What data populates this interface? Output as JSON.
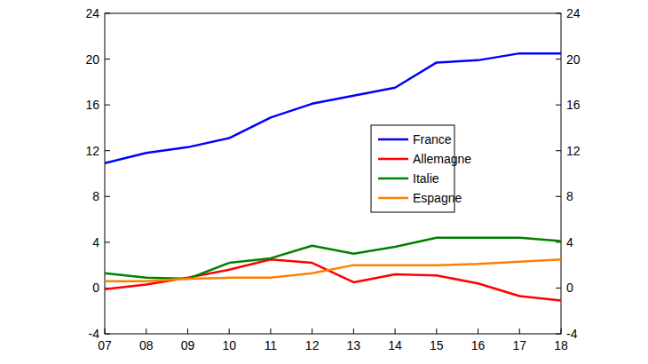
{
  "chart_data": {
    "type": "line",
    "categories": [
      "07",
      "08",
      "09",
      "10",
      "11",
      "12",
      "13",
      "14",
      "15",
      "16",
      "17",
      "18"
    ],
    "series": [
      {
        "name": "France",
        "color": "#0000ff",
        "values": [
          10.9,
          11.8,
          12.3,
          13.1,
          14.9,
          16.1,
          16.8,
          17.5,
          19.7,
          19.9,
          20.5,
          20.5
        ]
      },
      {
        "name": "Allemagne",
        "color": "#ff0000",
        "values": [
          -0.1,
          0.3,
          0.9,
          1.6,
          2.5,
          2.2,
          0.5,
          1.2,
          1.1,
          0.4,
          -0.7,
          -1.1
        ]
      },
      {
        "name": "Italie",
        "color": "#008000",
        "values": [
          1.3,
          0.9,
          0.8,
          2.2,
          2.6,
          3.7,
          3.0,
          3.6,
          4.4,
          4.4,
          4.4,
          4.1
        ]
      },
      {
        "name": "Espagne",
        "color": "#ff8000",
        "values": [
          0.6,
          0.6,
          0.8,
          0.9,
          0.9,
          1.3,
          2.0,
          2.0,
          2.0,
          2.1,
          2.3,
          2.5
        ]
      }
    ],
    "ylim": [
      -4,
      24
    ],
    "yticks": [
      -4,
      0,
      4,
      8,
      12,
      16,
      20,
      24
    ],
    "y2lim": [
      -4,
      24
    ],
    "y2ticks": [
      -4,
      0,
      4,
      8,
      12,
      16,
      20,
      24
    ],
    "grid": false,
    "legend": "right"
  }
}
